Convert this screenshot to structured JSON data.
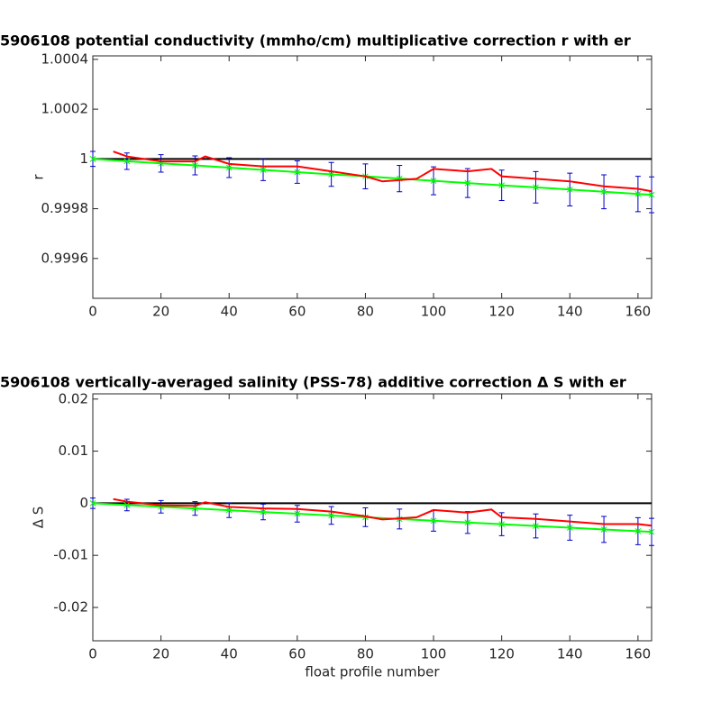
{
  "chart_data": [
    {
      "type": "line",
      "title": "5906108 potential conductivity (mmho/cm) multiplicative correction r with er",
      "y_label": "r",
      "xlim": [
        0,
        164
      ],
      "ylim": [
        0.99944,
        1.000414
      ],
      "xticks": [
        0,
        20,
        40,
        60,
        80,
        100,
        120,
        140,
        160
      ],
      "yticks": [
        0.9996,
        0.9998,
        1,
        1.0002,
        1.0004
      ],
      "series": [
        {
          "color": "#000000",
          "x": [
            0,
            164
          ],
          "values": [
            1,
            1
          ]
        },
        {
          "color": "#00ff00",
          "error_color": "#0000cc",
          "x": [
            0,
            10,
            20,
            30,
            40,
            50,
            60,
            70,
            80,
            90,
            100,
            110,
            120,
            130,
            140,
            150,
            160,
            164
          ],
          "values": [
            1.0,
            0.999991,
            0.999982,
            0.999974,
            0.999965,
            0.999956,
            0.999947,
            0.999938,
            0.99993,
            0.999921,
            0.999912,
            0.999903,
            0.999894,
            0.999886,
            0.999877,
            0.999868,
            0.999859,
            0.999856
          ],
          "errors": [
            3e-05,
            3.3e-05,
            3.5e-05,
            3.8e-05,
            4e-05,
            4.3e-05,
            4.5e-05,
            4.8e-05,
            5e-05,
            5.3e-05,
            5.6e-05,
            5.8e-05,
            6.1e-05,
            6.3e-05,
            6.6e-05,
            6.8e-05,
            7.1e-05,
            7.2e-05
          ]
        },
        {
          "color": "#ff0000",
          "x": [
            6,
            10,
            20,
            30,
            33,
            40,
            50,
            60,
            70,
            80,
            85,
            95,
            100,
            110,
            117,
            120,
            130,
            140,
            150,
            160,
            164
          ],
          "values": [
            1.00003,
            1.00001,
            0.99999,
            0.99999,
            1.00001,
            0.99998,
            0.99997,
            0.99997,
            0.99995,
            0.99993,
            0.99991,
            0.99992,
            0.99996,
            0.99995,
            0.99996,
            0.99993,
            0.99992,
            0.99991,
            0.99989,
            0.99988,
            0.99987
          ]
        }
      ]
    },
    {
      "type": "line",
      "title": "5906108 vertically-averaged salinity (PSS-78) additive correction Δ S with er",
      "y_label": "Δ S",
      "x_label": "float profile number",
      "xlim": [
        0,
        164
      ],
      "ylim": [
        -0.0264,
        0.021
      ],
      "xticks": [
        0,
        20,
        40,
        60,
        80,
        100,
        120,
        140,
        160
      ],
      "yticks": [
        -0.02,
        -0.01,
        0,
        0.01,
        0.02
      ],
      "series": [
        {
          "color": "#000000",
          "x": [
            0,
            164
          ],
          "values": [
            0,
            0
          ]
        },
        {
          "color": "#00ff00",
          "error_color": "#0000cc",
          "x": [
            0,
            10,
            20,
            30,
            40,
            50,
            60,
            70,
            80,
            90,
            100,
            110,
            120,
            130,
            140,
            150,
            160,
            164
          ],
          "values": [
            0,
            -0.00034,
            -0.00067,
            -0.001,
            -0.00134,
            -0.00168,
            -0.00201,
            -0.00235,
            -0.00268,
            -0.00302,
            -0.00335,
            -0.00369,
            -0.00402,
            -0.00436,
            -0.00469,
            -0.00503,
            -0.00536,
            -0.0055
          ],
          "errors": [
            0.001,
            0.0011,
            0.0012,
            0.0013,
            0.0014,
            0.0015,
            0.0016,
            0.0017,
            0.0018,
            0.0019,
            0.002,
            0.0021,
            0.0022,
            0.0023,
            0.0024,
            0.0025,
            0.0026,
            0.0026
          ]
        },
        {
          "color": "#ff0000",
          "x": [
            6,
            10,
            20,
            30,
            33,
            40,
            50,
            60,
            70,
            80,
            85,
            95,
            100,
            110,
            117,
            120,
            130,
            140,
            150,
            160,
            164
          ],
          "values": [
            0.0008,
            0.0003,
            -0.0004,
            -0.0005,
            0.0002,
            -0.0007,
            -0.001,
            -0.0011,
            -0.0016,
            -0.0025,
            -0.0031,
            -0.0027,
            -0.0013,
            -0.0018,
            -0.0012,
            -0.0027,
            -0.003,
            -0.0035,
            -0.004,
            -0.004,
            -0.0043
          ]
        }
      ]
    }
  ]
}
